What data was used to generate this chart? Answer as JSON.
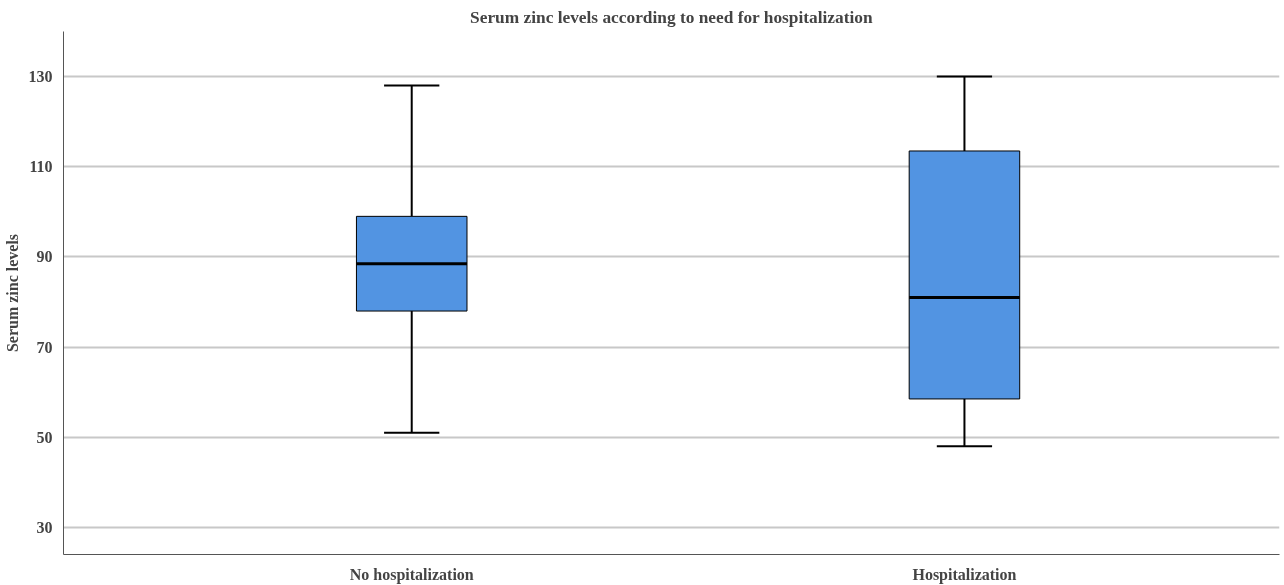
{
  "chart_data": {
    "type": "box",
    "title": "Serum zinc levels according to need for hospitalization",
    "ylabel": "Serum zinc levels",
    "categories": [
      "No hospitalization",
      "Hospitalization"
    ],
    "series": [
      {
        "color": "#5294e2",
        "boxes": [
          {
            "low": 51,
            "q1": 78,
            "median": 88.5,
            "q3": 99,
            "high": 128
          },
          {
            "low": 48,
            "q1": 58.5,
            "median": 81,
            "q3": 113.5,
            "high": 130
          }
        ]
      }
    ],
    "ylim": [
      24,
      140
    ],
    "yticks": [
      30,
      50,
      70,
      90,
      110,
      130
    ],
    "grid": "y"
  }
}
